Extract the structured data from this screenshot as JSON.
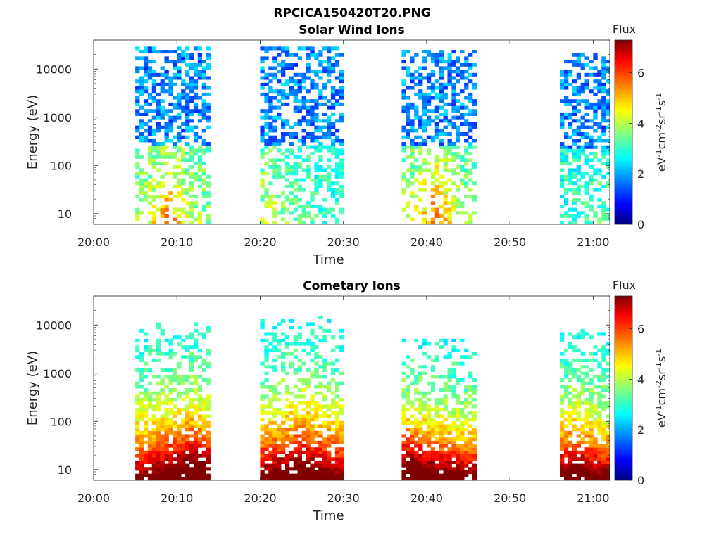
{
  "figure_title": "RPCICA150420T20.PNG",
  "chart_data": [
    {
      "type": "heatmap",
      "title": "Solar Wind Ions",
      "xlabel": "Time",
      "ylabel": "Energy (eV)",
      "x_ticks": [
        "20:00",
        "20:10",
        "20:20",
        "20:30",
        "20:40",
        "20:50",
        "21:00"
      ],
      "x_range": [
        "20:00",
        "21:02"
      ],
      "y_scale": "log",
      "y_ticks": [
        "10",
        "100",
        "1000",
        "10000"
      ],
      "y_range": [
        6,
        40000
      ],
      "colorbar": {
        "label": "Flux",
        "unit": "eV-1cm-2sr-1s-1",
        "range": [
          0,
          7.3
        ],
        "ticks": [
          "0",
          "2",
          "4",
          "6"
        ],
        "colormap": "jet"
      },
      "bursts": [
        {
          "start": "20:05",
          "end": "20:14",
          "emin": 6,
          "emax": 30000,
          "peak": 5.8,
          "peak_time": "20:09"
        },
        {
          "start": "20:20",
          "end": "20:30",
          "emin": 6,
          "emax": 30000,
          "peak": 4.5,
          "peak_time": "20:21"
        },
        {
          "start": "20:37",
          "end": "20:46",
          "emin": 6,
          "emax": 25000,
          "peak": 6.0,
          "peak_time": "20:41"
        },
        {
          "start": "20:56",
          "end": "21:02",
          "emin": 6,
          "emax": 20000,
          "peak": 3.5,
          "peak_time": "21:01"
        }
      ]
    },
    {
      "type": "heatmap",
      "title": "Cometary Ions",
      "xlabel": "Time",
      "ylabel": "Energy (eV)",
      "x_ticks": [
        "20:00",
        "20:10",
        "20:20",
        "20:30",
        "20:40",
        "20:50",
        "21:00"
      ],
      "x_range": [
        "20:00",
        "21:02"
      ],
      "y_scale": "log",
      "y_ticks": [
        "10",
        "100",
        "1000",
        "10000"
      ],
      "y_range": [
        6,
        40000
      ],
      "colorbar": {
        "label": "Flux",
        "unit": "eV-1cm-2sr-1s-1",
        "range": [
          0,
          7.3
        ],
        "ticks": [
          "0",
          "2",
          "4",
          "6"
        ],
        "colormap": "jet"
      },
      "bursts": [
        {
          "start": "20:05",
          "end": "20:14",
          "emin": 6,
          "emax": 12000,
          "peak": 7.0,
          "peak_time": "20:12"
        },
        {
          "start": "20:20",
          "end": "20:30",
          "emin": 6,
          "emax": 15000,
          "peak": 6.8,
          "peak_time": "20:25"
        },
        {
          "start": "20:37",
          "end": "20:46",
          "emin": 6,
          "emax": 5000,
          "peak": 7.2,
          "peak_time": "20:38"
        },
        {
          "start": "20:56",
          "end": "21:02",
          "emin": 6,
          "emax": 8000,
          "peak": 6.5,
          "peak_time": "20:58"
        }
      ]
    }
  ]
}
